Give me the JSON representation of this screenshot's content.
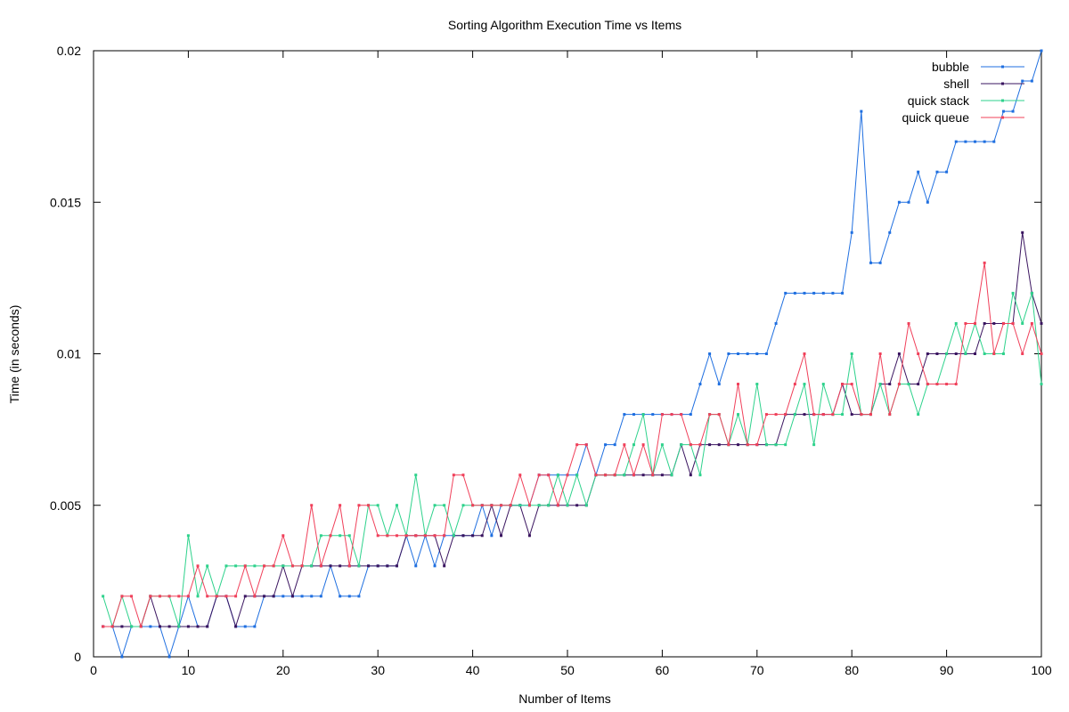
{
  "chart_data": {
    "type": "line",
    "title": "Sorting Algorithm Execution Time vs Items",
    "xlabel": "Number of Items",
    "ylabel": "Time (in seconds)",
    "xlim": [
      0,
      100
    ],
    "ylim": [
      0,
      0.02
    ],
    "xticks": [
      "0",
      "10",
      "20",
      "30",
      "40",
      "50",
      "60",
      "70",
      "80",
      "90",
      "100"
    ],
    "yticks": [
      "0",
      "0.005",
      "0.01",
      "0.015",
      "0.02"
    ],
    "grid": false,
    "legend_position": "top-right",
    "x": [
      1,
      2,
      3,
      4,
      5,
      6,
      7,
      8,
      9,
      10,
      11,
      12,
      13,
      14,
      15,
      16,
      17,
      18,
      19,
      20,
      21,
      22,
      23,
      24,
      25,
      26,
      27,
      28,
      29,
      30,
      31,
      32,
      33,
      34,
      35,
      36,
      37,
      38,
      39,
      40,
      41,
      42,
      43,
      44,
      45,
      46,
      47,
      48,
      49,
      50,
      51,
      52,
      53,
      54,
      55,
      56,
      57,
      58,
      59,
      60,
      61,
      62,
      63,
      64,
      65,
      66,
      67,
      68,
      69,
      70,
      71,
      72,
      73,
      74,
      75,
      76,
      77,
      78,
      79,
      80,
      81,
      82,
      83,
      84,
      85,
      86,
      87,
      88,
      89,
      90,
      91,
      92,
      93,
      94,
      95,
      96,
      97,
      98,
      99,
      100
    ],
    "series": [
      {
        "name": "bubble",
        "color": "#1f6fe0",
        "values": [
          0.001,
          0.001,
          0,
          0.001,
          0.001,
          0.001,
          0.001,
          0,
          0.001,
          0.002,
          0.001,
          0.001,
          0.002,
          0.002,
          0.001,
          0.001,
          0.001,
          0.002,
          0.002,
          0.002,
          0.002,
          0.002,
          0.002,
          0.002,
          0.003,
          0.002,
          0.002,
          0.002,
          0.003,
          0.003,
          0.003,
          0.003,
          0.004,
          0.003,
          0.004,
          0.003,
          0.004,
          0.004,
          0.004,
          0.004,
          0.005,
          0.004,
          0.005,
          0.005,
          0.005,
          0.005,
          0.006,
          0.006,
          0.006,
          0.006,
          0.006,
          0.007,
          0.006,
          0.007,
          0.007,
          0.008,
          0.008,
          0.008,
          0.008,
          0.008,
          0.008,
          0.008,
          0.008,
          0.009,
          0.01,
          0.009,
          0.01,
          0.01,
          0.01,
          0.01,
          0.01,
          0.011,
          0.012,
          0.012,
          0.012,
          0.012,
          0.012,
          0.012,
          0.012,
          0.014,
          0.018,
          0.013,
          0.013,
          0.014,
          0.015,
          0.015,
          0.016,
          0.015,
          0.016,
          0.016,
          0.017,
          0.017,
          0.017,
          0.017,
          0.017,
          0.018,
          0.018,
          0.019,
          0.019,
          0.02
        ]
      },
      {
        "name": "shell",
        "color": "#3a1560",
        "values": [
          0.001,
          0.001,
          0.001,
          0.001,
          0.001,
          0.002,
          0.001,
          0.001,
          0.001,
          0.001,
          0.001,
          0.001,
          0.002,
          0.002,
          0.001,
          0.002,
          0.002,
          0.002,
          0.002,
          0.003,
          0.002,
          0.003,
          0.003,
          0.003,
          0.003,
          0.003,
          0.003,
          0.003,
          0.003,
          0.003,
          0.003,
          0.003,
          0.004,
          0.004,
          0.004,
          0.004,
          0.003,
          0.004,
          0.004,
          0.004,
          0.004,
          0.005,
          0.004,
          0.005,
          0.005,
          0.004,
          0.005,
          0.005,
          0.005,
          0.005,
          0.005,
          0.005,
          0.006,
          0.006,
          0.006,
          0.006,
          0.006,
          0.006,
          0.006,
          0.006,
          0.006,
          0.007,
          0.006,
          0.007,
          0.007,
          0.007,
          0.007,
          0.007,
          0.007,
          0.007,
          0.007,
          0.007,
          0.008,
          0.008,
          0.008,
          0.008,
          0.008,
          0.008,
          0.009,
          0.008,
          0.008,
          0.008,
          0.009,
          0.009,
          0.01,
          0.009,
          0.009,
          0.01,
          0.01,
          0.01,
          0.01,
          0.01,
          0.01,
          0.011,
          0.011,
          0.011,
          0.011,
          0.014,
          0.012,
          0.011
        ]
      },
      {
        "name": "quick stack",
        "color": "#2ed28c",
        "values": [
          0.002,
          0.001,
          0.002,
          0.001,
          0.001,
          0.002,
          0.002,
          0.002,
          0.001,
          0.004,
          0.002,
          0.003,
          0.002,
          0.003,
          0.003,
          0.003,
          0.003,
          0.003,
          0.003,
          0.003,
          0.003,
          0.003,
          0.003,
          0.004,
          0.004,
          0.004,
          0.004,
          0.003,
          0.005,
          0.005,
          0.004,
          0.005,
          0.004,
          0.006,
          0.004,
          0.005,
          0.005,
          0.004,
          0.005,
          0.005,
          0.005,
          0.005,
          0.005,
          0.005,
          0.005,
          0.005,
          0.005,
          0.005,
          0.006,
          0.005,
          0.006,
          0.005,
          0.006,
          0.006,
          0.006,
          0.006,
          0.007,
          0.008,
          0.006,
          0.007,
          0.006,
          0.007,
          0.007,
          0.006,
          0.008,
          0.008,
          0.007,
          0.008,
          0.007,
          0.009,
          0.007,
          0.007,
          0.007,
          0.008,
          0.009,
          0.007,
          0.009,
          0.008,
          0.008,
          0.01,
          0.008,
          0.008,
          0.009,
          0.008,
          0.009,
          0.009,
          0.008,
          0.009,
          0.009,
          0.01,
          0.011,
          0.01,
          0.011,
          0.01,
          0.01,
          0.01,
          0.012,
          0.011,
          0.012,
          0.009
        ]
      },
      {
        "name": "quick queue",
        "color": "#f0405a",
        "values": [
          0.001,
          0.001,
          0.002,
          0.002,
          0.001,
          0.002,
          0.002,
          0.002,
          0.002,
          0.002,
          0.003,
          0.002,
          0.002,
          0.002,
          0.002,
          0.003,
          0.002,
          0.003,
          0.003,
          0.004,
          0.003,
          0.003,
          0.005,
          0.003,
          0.004,
          0.005,
          0.003,
          0.005,
          0.005,
          0.004,
          0.004,
          0.004,
          0.004,
          0.004,
          0.004,
          0.004,
          0.004,
          0.006,
          0.006,
          0.005,
          0.005,
          0.005,
          0.005,
          0.005,
          0.006,
          0.005,
          0.006,
          0.006,
          0.005,
          0.006,
          0.007,
          0.007,
          0.006,
          0.006,
          0.006,
          0.007,
          0.006,
          0.007,
          0.006,
          0.008,
          0.008,
          0.008,
          0.007,
          0.007,
          0.008,
          0.008,
          0.007,
          0.009,
          0.007,
          0.007,
          0.008,
          0.008,
          0.008,
          0.009,
          0.01,
          0.008,
          0.008,
          0.008,
          0.009,
          0.009,
          0.008,
          0.008,
          0.01,
          0.008,
          0.009,
          0.011,
          0.01,
          0.009,
          0.009,
          0.009,
          0.009,
          0.011,
          0.011,
          0.013,
          0.01,
          0.011,
          0.011,
          0.01,
          0.011,
          0.01
        ]
      }
    ]
  }
}
